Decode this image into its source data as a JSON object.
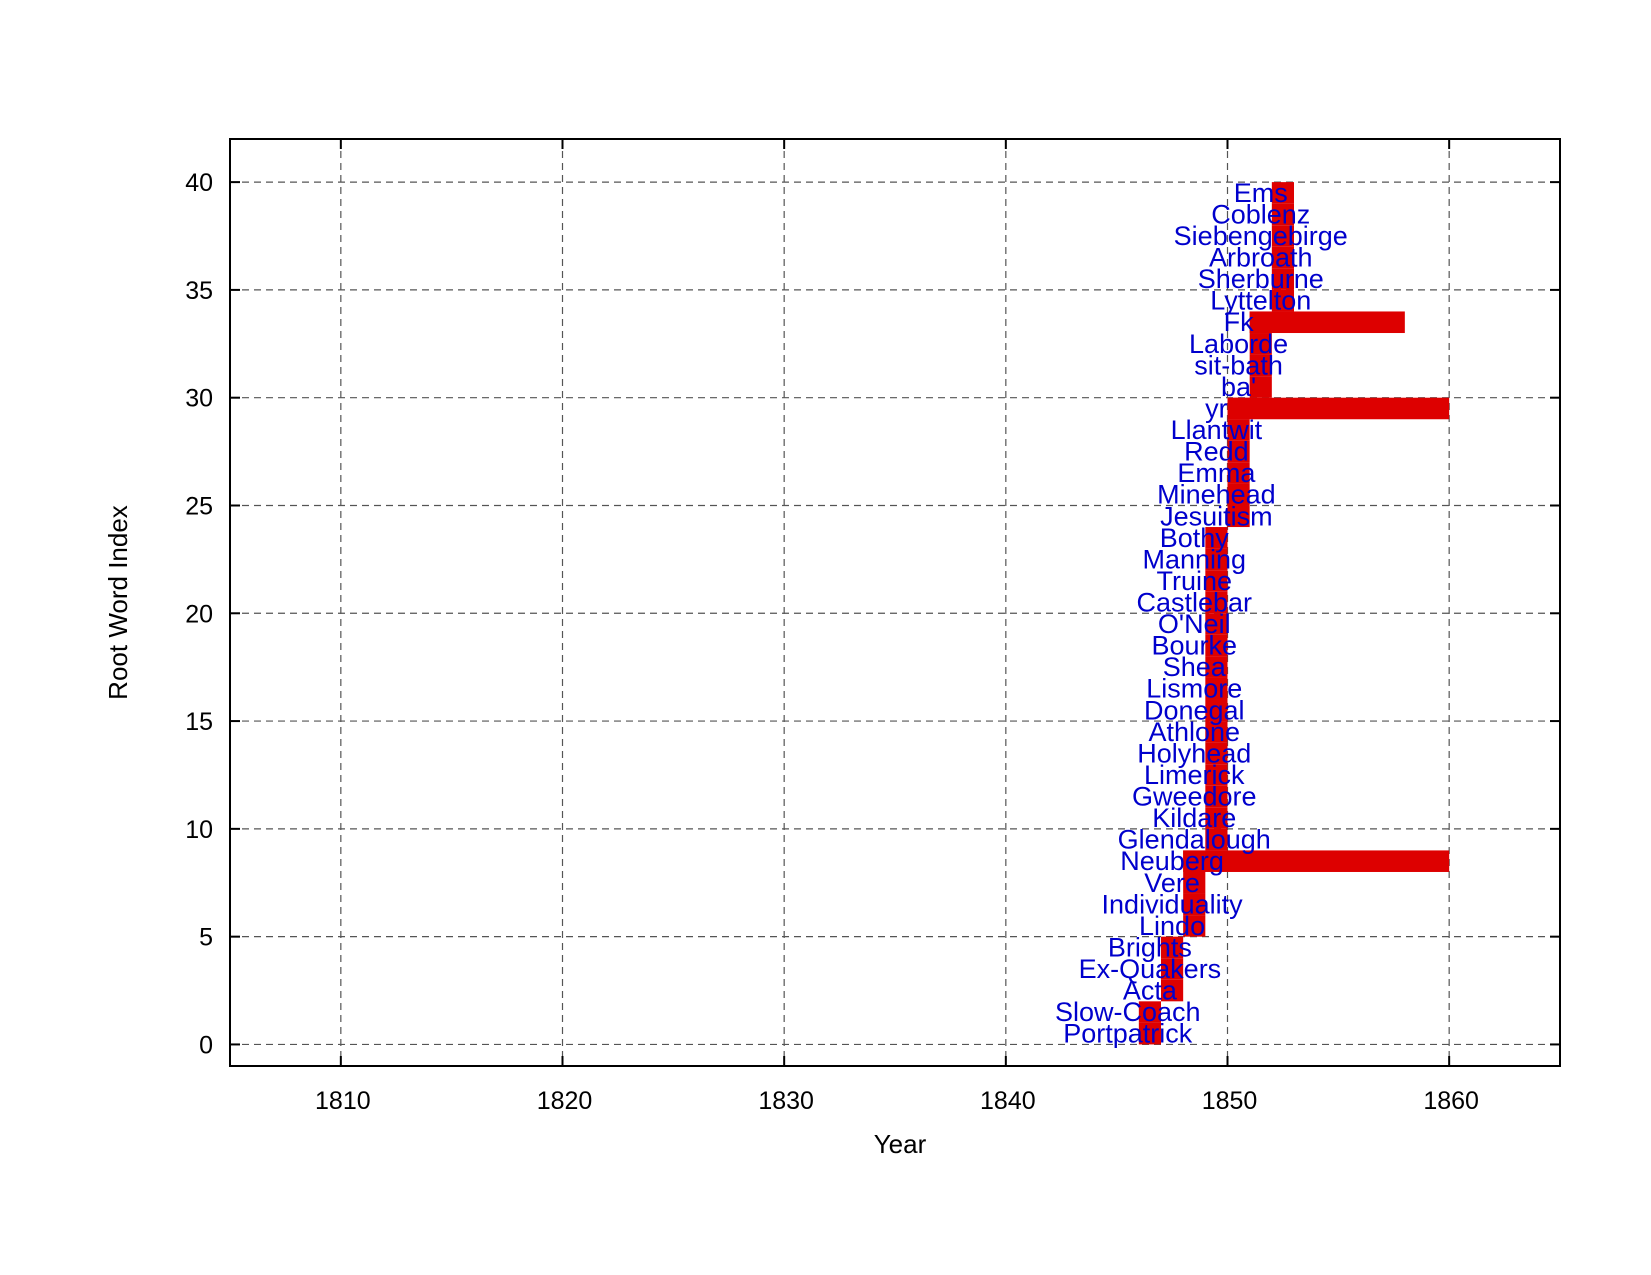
{
  "chart_data": {
    "type": "line",
    "xlabel": "Year",
    "ylabel": "Root Word Index",
    "xlim": [
      1805,
      1865
    ],
    "ylim": [
      -1,
      42
    ],
    "x_ticks": [
      1810,
      1820,
      1830,
      1840,
      1850,
      1860
    ],
    "y_ticks": [
      0,
      5,
      10,
      15,
      20,
      25,
      30,
      35,
      40
    ],
    "grid": true,
    "line_color": "#dd0000",
    "label_color": "#0000cc",
    "words": [
      {
        "index": 0,
        "label": "Portpatrick",
        "year": 1846
      },
      {
        "index": 1,
        "label": "Slow-Coach",
        "year": 1846
      },
      {
        "index": 2,
        "label": "Acta",
        "year": 1847
      },
      {
        "index": 3,
        "label": "Ex-Quakers",
        "year": 1847
      },
      {
        "index": 4,
        "label": "Brights",
        "year": 1847
      },
      {
        "index": 5,
        "label": "Lindo",
        "year": 1848
      },
      {
        "index": 6,
        "label": "Individuality",
        "year": 1848
      },
      {
        "index": 7,
        "label": "Vere",
        "year": 1848
      },
      {
        "index": 8,
        "label": "Neuberg",
        "year": 1848
      },
      {
        "index": 9,
        "label": "Glendalough",
        "year": 1849
      },
      {
        "index": 10,
        "label": "Kildare",
        "year": 1849
      },
      {
        "index": 11,
        "label": "Gweedore",
        "year": 1849
      },
      {
        "index": 12,
        "label": "Limerick",
        "year": 1849
      },
      {
        "index": 13,
        "label": "Holyhead",
        "year": 1849
      },
      {
        "index": 14,
        "label": "Athlone",
        "year": 1849
      },
      {
        "index": 15,
        "label": "Donegal",
        "year": 1849
      },
      {
        "index": 16,
        "label": "Lismore",
        "year": 1849
      },
      {
        "index": 17,
        "label": "Shea",
        "year": 1849
      },
      {
        "index": 18,
        "label": "Bourke",
        "year": 1849
      },
      {
        "index": 19,
        "label": "O'Neil",
        "year": 1849
      },
      {
        "index": 20,
        "label": "Castlebar",
        "year": 1849
      },
      {
        "index": 21,
        "label": "Truine",
        "year": 1849
      },
      {
        "index": 22,
        "label": "Manning",
        "year": 1849
      },
      {
        "index": 23,
        "label": "Bothy",
        "year": 1849
      },
      {
        "index": 24,
        "label": "Jesuitism",
        "year": 1850
      },
      {
        "index": 25,
        "label": "Minehead",
        "year": 1850
      },
      {
        "index": 26,
        "label": "Emma",
        "year": 1850
      },
      {
        "index": 27,
        "label": "Redd",
        "year": 1850
      },
      {
        "index": 28,
        "label": "Llantwit",
        "year": 1850
      },
      {
        "index": 29,
        "label": "yr",
        "year": 1850
      },
      {
        "index": 30,
        "label": "ba'",
        "year": 1851
      },
      {
        "index": 31,
        "label": "sit-bath",
        "year": 1851
      },
      {
        "index": 32,
        "label": "Laborde",
        "year": 1851
      },
      {
        "index": 33,
        "label": "Fk",
        "year": 1851
      },
      {
        "index": 34,
        "label": "Lyttelton",
        "year": 1852
      },
      {
        "index": 35,
        "label": "Sherburne",
        "year": 1852
      },
      {
        "index": 36,
        "label": "Arbroath",
        "year": 1852
      },
      {
        "index": 37,
        "label": "Siebengebirge",
        "year": 1852
      },
      {
        "index": 38,
        "label": "Coblenz",
        "year": 1852
      },
      {
        "index": 39,
        "label": "Ems",
        "year": 1852
      }
    ],
    "extensions": [
      {
        "index": 8,
        "to_year": 1860
      },
      {
        "index": 29,
        "to_year": 1860
      },
      {
        "index": 33,
        "to_year": 1858
      }
    ]
  }
}
